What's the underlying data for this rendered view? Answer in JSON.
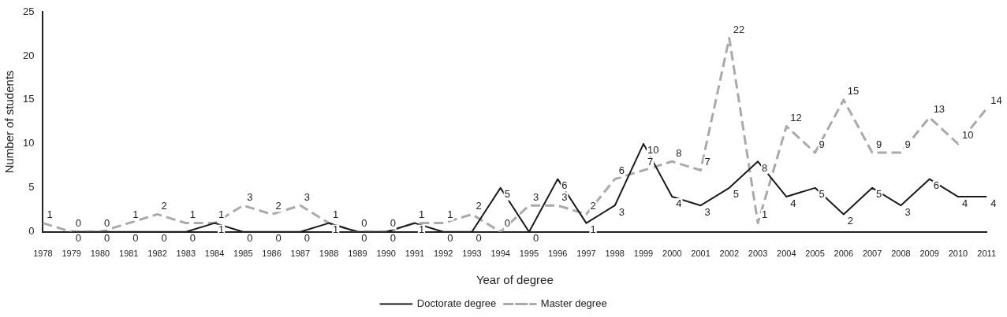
{
  "chart_data": {
    "type": "line",
    "xlabel": "Year of degree",
    "ylabel": "Number of students",
    "categories": [
      "1978",
      "1979",
      "1980",
      "1981",
      "1982",
      "1983",
      "1984",
      "1985",
      "1986",
      "1987",
      "1988",
      "1989",
      "1990",
      "1991",
      "1992",
      "1993",
      "1994",
      "1995",
      "1996",
      "1997",
      "1998",
      "1999",
      "2000",
      "2001",
      "2002",
      "2003",
      "2004",
      "2005",
      "2006",
      "2007",
      "2008",
      "2009",
      "2010",
      "2011"
    ],
    "series": [
      {
        "name": "Doctorate degree",
        "color": "#1a1a1a",
        "line_style": "solid",
        "values": [
          null,
          0,
          0,
          0,
          0,
          0,
          1,
          0,
          0,
          0,
          1,
          0,
          0,
          1,
          0,
          0,
          5,
          0,
          6,
          1,
          3,
          10,
          4,
          3,
          5,
          8,
          4,
          5,
          2,
          5,
          3,
          6,
          4,
          4
        ]
      },
      {
        "name": "Master degree",
        "color": "#aaaaaa",
        "line_style": "dashed",
        "values": [
          1,
          0,
          0,
          1,
          2,
          1,
          1,
          3,
          2,
          3,
          1,
          0,
          0,
          1,
          1,
          2,
          0,
          3,
          3,
          2,
          6,
          7,
          8,
          7,
          22,
          1,
          12,
          9,
          15,
          9,
          9,
          13,
          10,
          14
        ]
      }
    ],
    "ylim": [
      0,
      25
    ],
    "yticks": [
      0,
      5,
      10,
      15,
      20,
      25
    ],
    "grid": false,
    "legend": "bottom",
    "marker": "none",
    "data_labels": true
  }
}
